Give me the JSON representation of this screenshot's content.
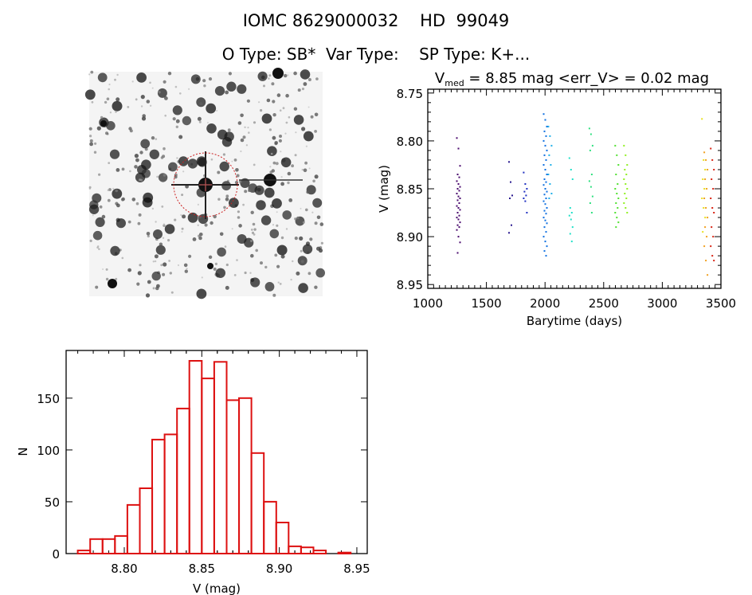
{
  "header": {
    "title": "IOMC 8629000032    HD  99049",
    "subtitle": "O Type: SB*  Var Type:    SP Type: K+..."
  },
  "chart_data": [
    {
      "type": "image",
      "content": "star field finding chart with red circle around target star"
    },
    {
      "type": "scatter",
      "title_main": "V",
      "title_sub": "med",
      "title_rest": " = 8.85 mag <err_V> = 0.02 mag",
      "xlabel": "Barytime (days)",
      "ylabel": "V (mag)",
      "xlim": [
        1000,
        3500
      ],
      "ylim": [
        8.746,
        8.954
      ],
      "y_reversed": true,
      "xticks": [
        "1000",
        "1500",
        "2000",
        "2500",
        "3000",
        "3500"
      ],
      "yticks": [
        "8.75",
        "8.80",
        "8.85",
        "8.90",
        "8.95"
      ],
      "color_scale": "rainbow by time",
      "clusters": [
        {
          "x": 1255,
          "color": "#4a0a6e",
          "y": [
            8.797,
            8.808,
            8.826,
            8.835,
            8.838,
            8.842,
            8.845,
            8.848,
            8.85,
            8.852,
            8.855,
            8.858,
            8.86,
            8.862,
            8.865,
            8.868,
            8.87,
            8.872,
            8.875,
            8.878,
            8.88,
            8.882,
            8.885,
            8.888,
            8.89,
            8.893,
            8.9,
            8.906,
            8.917
          ]
        },
        {
          "x": 1700,
          "color": "#2a1a90",
          "y": [
            8.822,
            8.843,
            8.857,
            8.86,
            8.888,
            8.896
          ]
        },
        {
          "x": 1825,
          "color": "#2030c0",
          "y": [
            8.833,
            8.845,
            8.85,
            8.853,
            8.857,
            8.86,
            8.863,
            8.875
          ]
        },
        {
          "x": 1995,
          "color": "#1070e0",
          "y": [
            8.772,
            8.778,
            8.785,
            8.79,
            8.795,
            8.8,
            8.805,
            8.81,
            8.815,
            8.82,
            8.825,
            8.83,
            8.835,
            8.84,
            8.843,
            8.846,
            8.85,
            8.853,
            8.856,
            8.86,
            8.863,
            8.866,
            8.87,
            8.873,
            8.876,
            8.88,
            8.883,
            8.886,
            8.89,
            8.895,
            8.9,
            8.905,
            8.91,
            8.915,
            8.92
          ]
        },
        {
          "x": 2035,
          "color": "#20b0e8",
          "y": [
            8.785,
            8.795,
            8.805,
            8.815,
            8.825,
            8.835,
            8.845,
            8.855,
            8.86
          ]
        },
        {
          "x": 2215,
          "color": "#20e0c8",
          "y": [
            8.818,
            8.83,
            8.84,
            8.87,
            8.875,
            8.878,
            8.882,
            8.89,
            8.897,
            8.905
          ]
        },
        {
          "x": 2385,
          "color": "#30e080",
          "y": [
            8.787,
            8.793,
            8.805,
            8.81,
            8.835,
            8.842,
            8.848,
            8.858,
            8.865,
            8.875
          ]
        },
        {
          "x": 2605,
          "color": "#50e030",
          "y": [
            8.805,
            8.815,
            8.825,
            8.835,
            8.845,
            8.85,
            8.855,
            8.86,
            8.865,
            8.87,
            8.875,
            8.88,
            8.885,
            8.89
          ]
        },
        {
          "x": 2680,
          "color": "#90f020",
          "y": [
            8.805,
            8.815,
            8.825,
            8.83,
            8.835,
            8.84,
            8.845,
            8.85,
            8.855,
            8.86,
            8.865,
            8.87,
            8.875
          ]
        },
        {
          "x": 3345,
          "color": "#e8e020",
          "y": [
            8.777,
            8.82,
            8.83,
            8.84,
            8.85,
            8.86,
            8.87,
            8.88,
            8.895
          ]
        },
        {
          "x": 3365,
          "color": "#f0a020",
          "y": [
            8.812,
            8.82,
            8.83,
            8.84,
            8.85,
            8.86,
            8.87,
            8.88,
            8.89,
            8.9,
            8.91,
            8.925,
            8.94
          ]
        },
        {
          "x": 3420,
          "color": "#d82010",
          "y": [
            8.808,
            8.82,
            8.83,
            8.84,
            8.85,
            8.86,
            8.87,
            8.875,
            8.89,
            8.9,
            8.91,
            8.92,
            8.925
          ]
        }
      ]
    },
    {
      "type": "bar",
      "subtype": "histogram",
      "xlabel": "V (mag)",
      "ylabel": "N",
      "xlim": [
        8.7625,
        8.9567
      ],
      "ylim": [
        0,
        196
      ],
      "xticks": [
        "8.80",
        "8.85",
        "8.90",
        "8.95"
      ],
      "yticks": [
        "0",
        "50",
        "100",
        "150"
      ],
      "bin_start": 8.77,
      "bin_width": 0.008,
      "values": [
        3,
        14,
        14,
        17,
        47,
        63,
        110,
        115,
        140,
        186,
        169,
        185,
        148,
        150,
        97,
        50,
        30,
        7,
        6,
        3,
        0,
        1
      ],
      "color": "#dd1111"
    }
  ]
}
